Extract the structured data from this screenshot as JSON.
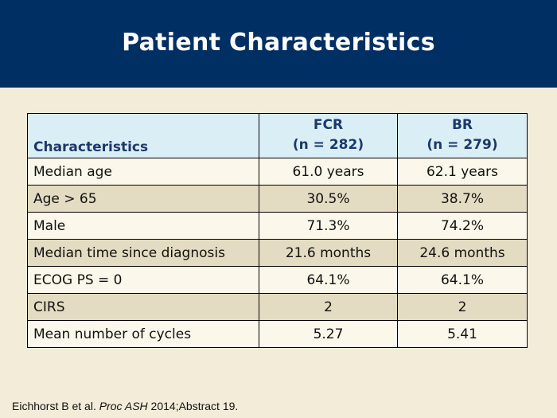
{
  "header": {
    "title": "Patient Characteristics"
  },
  "table": {
    "columns": [
      {
        "label": "Characteristics"
      },
      {
        "label": "FCR",
        "n": "(n = 282)"
      },
      {
        "label": "BR",
        "n": "(n = 279)"
      }
    ],
    "rows": [
      [
        "Median age",
        "61.0 years",
        "62.1 years"
      ],
      [
        "Age > 65",
        "30.5%",
        "38.7%"
      ],
      [
        "Male",
        "71.3%",
        "74.2%"
      ],
      [
        "Median time since diagnosis",
        "21.6 months",
        "24.6 months"
      ],
      [
        "ECOG PS = 0",
        "64.1%",
        "64.1%"
      ],
      [
        "CIRS",
        "2",
        "2"
      ],
      [
        "Mean number of cycles",
        "5.27",
        "5.41"
      ]
    ]
  },
  "footer": {
    "authors": "Eichhorst B et al. ",
    "journal": "Proc ASH",
    "details": " 2014;Abstract 19."
  },
  "colors": {
    "header_bg": "#003063",
    "page_bg": "#f2ecd9",
    "table_header_bg": "#daeef5",
    "row_light": "#fbf7ea",
    "row_dark": "#e3dbc2"
  }
}
